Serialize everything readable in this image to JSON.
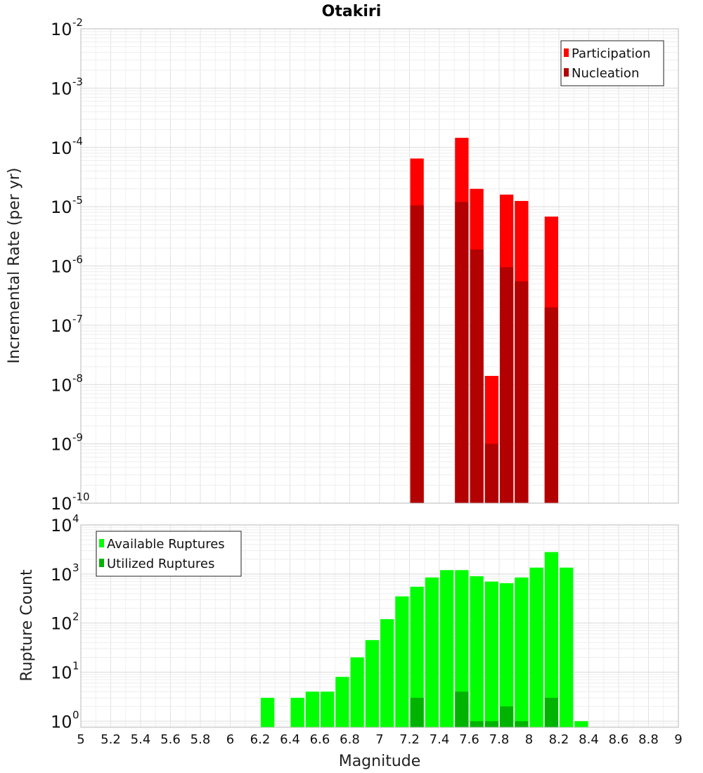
{
  "chart_data": [
    {
      "type": "bar",
      "title": "Otakiri",
      "ylabel": "Incremental Rate (per yr)",
      "xlabel": "",
      "yscale": "log",
      "ylim": [
        1e-10,
        0.01
      ],
      "xlim": [
        5,
        9
      ],
      "ytick_exponents": [
        -2,
        -3,
        -4,
        -5,
        -6,
        -7,
        -8,
        -9,
        -10
      ],
      "legend": "top-right",
      "grid": true,
      "bar_width": 0.1,
      "series": [
        {
          "name": "Participation",
          "color": "#ff0000",
          "x": [
            7.25,
            7.55,
            7.65,
            7.75,
            7.85,
            7.95,
            8.15
          ],
          "values": [
            6.5e-05,
            0.000145,
            2e-05,
            1.4e-08,
            1.6e-05,
            1.25e-05,
            6.8e-06
          ]
        },
        {
          "name": "Nucleation",
          "color": "#b30000",
          "x": [
            7.25,
            7.55,
            7.65,
            7.75,
            7.85,
            7.95,
            8.15
          ],
          "values": [
            1.05e-05,
            1.2e-05,
            1.9e-06,
            1e-09,
            9.5e-07,
            5.5e-07,
            2e-07
          ]
        }
      ]
    },
    {
      "type": "bar",
      "title": "",
      "ylabel": "Rupture Count",
      "xlabel": "Magnitude",
      "yscale": "log",
      "ylim": [
        0.75,
        10000
      ],
      "xlim": [
        5,
        9
      ],
      "ytick_exponents": [
        0,
        1,
        2,
        3,
        4
      ],
      "xticks": [
        "5",
        "5.2",
        "5.4",
        "5.6",
        "5.8",
        "6",
        "6.2",
        "6.4",
        "6.6",
        "6.8",
        "7",
        "7.2",
        "7.4",
        "7.6",
        "7.8",
        "8",
        "8.2",
        "8.4",
        "8.6",
        "8.8",
        "9"
      ],
      "legend": "top-left",
      "grid": true,
      "bar_width": 0.1,
      "series": [
        {
          "name": "Available Ruptures",
          "color": "#00ff00",
          "x": [
            6.25,
            6.45,
            6.55,
            6.65,
            6.75,
            6.85,
            6.95,
            7.05,
            7.15,
            7.25,
            7.35,
            7.45,
            7.55,
            7.65,
            7.75,
            7.85,
            7.95,
            8.05,
            8.15,
            8.25,
            8.35
          ],
          "values": [
            3,
            3,
            4,
            4,
            8,
            20,
            45,
            120,
            350,
            550,
            850,
            1200,
            1200,
            900,
            700,
            650,
            850,
            1350,
            2800,
            1350,
            1
          ]
        },
        {
          "name": "Utilized Ruptures",
          "color": "#00b300",
          "x": [
            7.25,
            7.55,
            7.65,
            7.75,
            7.85,
            7.95,
            8.15
          ],
          "values": [
            3,
            4,
            1,
            1,
            2,
            1,
            3
          ]
        }
      ]
    }
  ]
}
